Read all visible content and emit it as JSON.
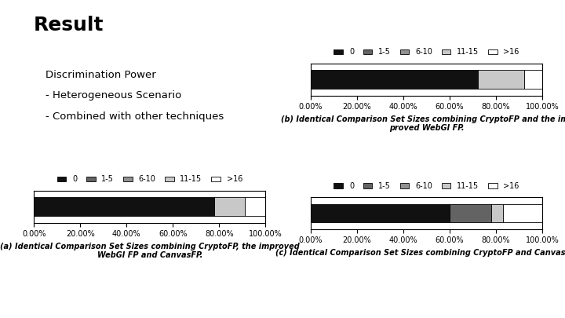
{
  "title": "Result",
  "annotations": [
    "Discrimination Power",
    "- Heterogeneous Scenario",
    "- Combined with other techniques"
  ],
  "chart_data": [
    {
      "type": "bar",
      "orientation": "horizontal",
      "stacked": true,
      "xlabel": "(a) Identical Comparison Set Sizes combining CryptoFP, the improved\nWebGI FP and CanvasFP.",
      "categories": [
        null
      ],
      "series": [
        {
          "name": "0",
          "color": "#111111",
          "values": [
            78.0
          ]
        },
        {
          "name": "1-5",
          "color": "#636363",
          "values": [
            0.0
          ]
        },
        {
          "name": "6-10",
          "color": "#919191",
          "values": [
            0.0
          ]
        },
        {
          "name": "11-15",
          "color": "#c8c8c8",
          "values": [
            13.0
          ]
        },
        {
          "name": ">16",
          "color": "#ffffff",
          "values": [
            9.0
          ]
        }
      ],
      "xlim": [
        0,
        100
      ],
      "xticks": [
        {
          "value": 0,
          "label": "0.00%"
        },
        {
          "value": 20,
          "label": "20.00%"
        },
        {
          "value": 40,
          "label": "40.00%"
        },
        {
          "value": 60,
          "label": "60.00%"
        },
        {
          "value": 80,
          "label": "80.00%"
        },
        {
          "value": 100,
          "label": "100.00%"
        }
      ],
      "tick_labels": "x",
      "legend": "lower center",
      "grid": false
    },
    {
      "type": "bar",
      "orientation": "horizontal",
      "stacked": true,
      "xlabel": "(b) Identical Comparison Set Sizes combining CryptoFP and the im-\nproved WebGI FP.",
      "categories": [
        null
      ],
      "series": [
        {
          "name": "0",
          "color": "#111111",
          "values": [
            72.0
          ]
        },
        {
          "name": "1-5",
          "color": "#636363",
          "values": [
            0.0
          ]
        },
        {
          "name": "6-10",
          "color": "#919191",
          "values": [
            0.0
          ]
        },
        {
          "name": "11-15",
          "color": "#c8c8c8",
          "values": [
            20.0
          ]
        },
        {
          "name": ">16",
          "color": "#ffffff",
          "values": [
            8.0
          ]
        }
      ],
      "xlim": [
        0,
        100
      ],
      "xticks": [
        {
          "value": 0,
          "label": "0.00%"
        },
        {
          "value": 20,
          "label": "20.00%"
        },
        {
          "value": 40,
          "label": "40.00%"
        },
        {
          "value": 60,
          "label": "60.00%"
        },
        {
          "value": 80,
          "label": "80.00%"
        },
        {
          "value": 100,
          "label": "100.00%"
        }
      ],
      "tick_labels": "x",
      "legend": "lower center",
      "grid": false
    },
    {
      "type": "bar",
      "orientation": "horizontal",
      "stacked": true,
      "xlabel": "(c) Identical Comparison Set Sizes combining CryptoFP and CanvasFP.",
      "categories": [
        null
      ],
      "series": [
        {
          "name": "0",
          "color": "#111111",
          "values": [
            60.0
          ]
        },
        {
          "name": "1-5",
          "color": "#636363",
          "values": [
            18.0
          ]
        },
        {
          "name": "6-10",
          "color": "#919191",
          "values": [
            0.0
          ]
        },
        {
          "name": "11-15",
          "color": "#c8c8c8",
          "values": [
            5.0
          ]
        },
        {
          "name": ">16",
          "color": "#ffffff",
          "values": [
            17.0
          ]
        }
      ],
      "xlim": [
        0,
        100
      ],
      "xticks": [
        {
          "value": 0,
          "label": "0.00%"
        },
        {
          "value": 20,
          "label": "20.00%"
        },
        {
          "value": 40,
          "label": "40.00%"
        },
        {
          "value": 60,
          "label": "60.00%"
        },
        {
          "value": 80,
          "label": "80.00%"
        },
        {
          "value": 100,
          "label": "100.00%"
        }
      ],
      "tick_labels": "x",
      "legend": "lower center",
      "grid": false
    }
  ]
}
